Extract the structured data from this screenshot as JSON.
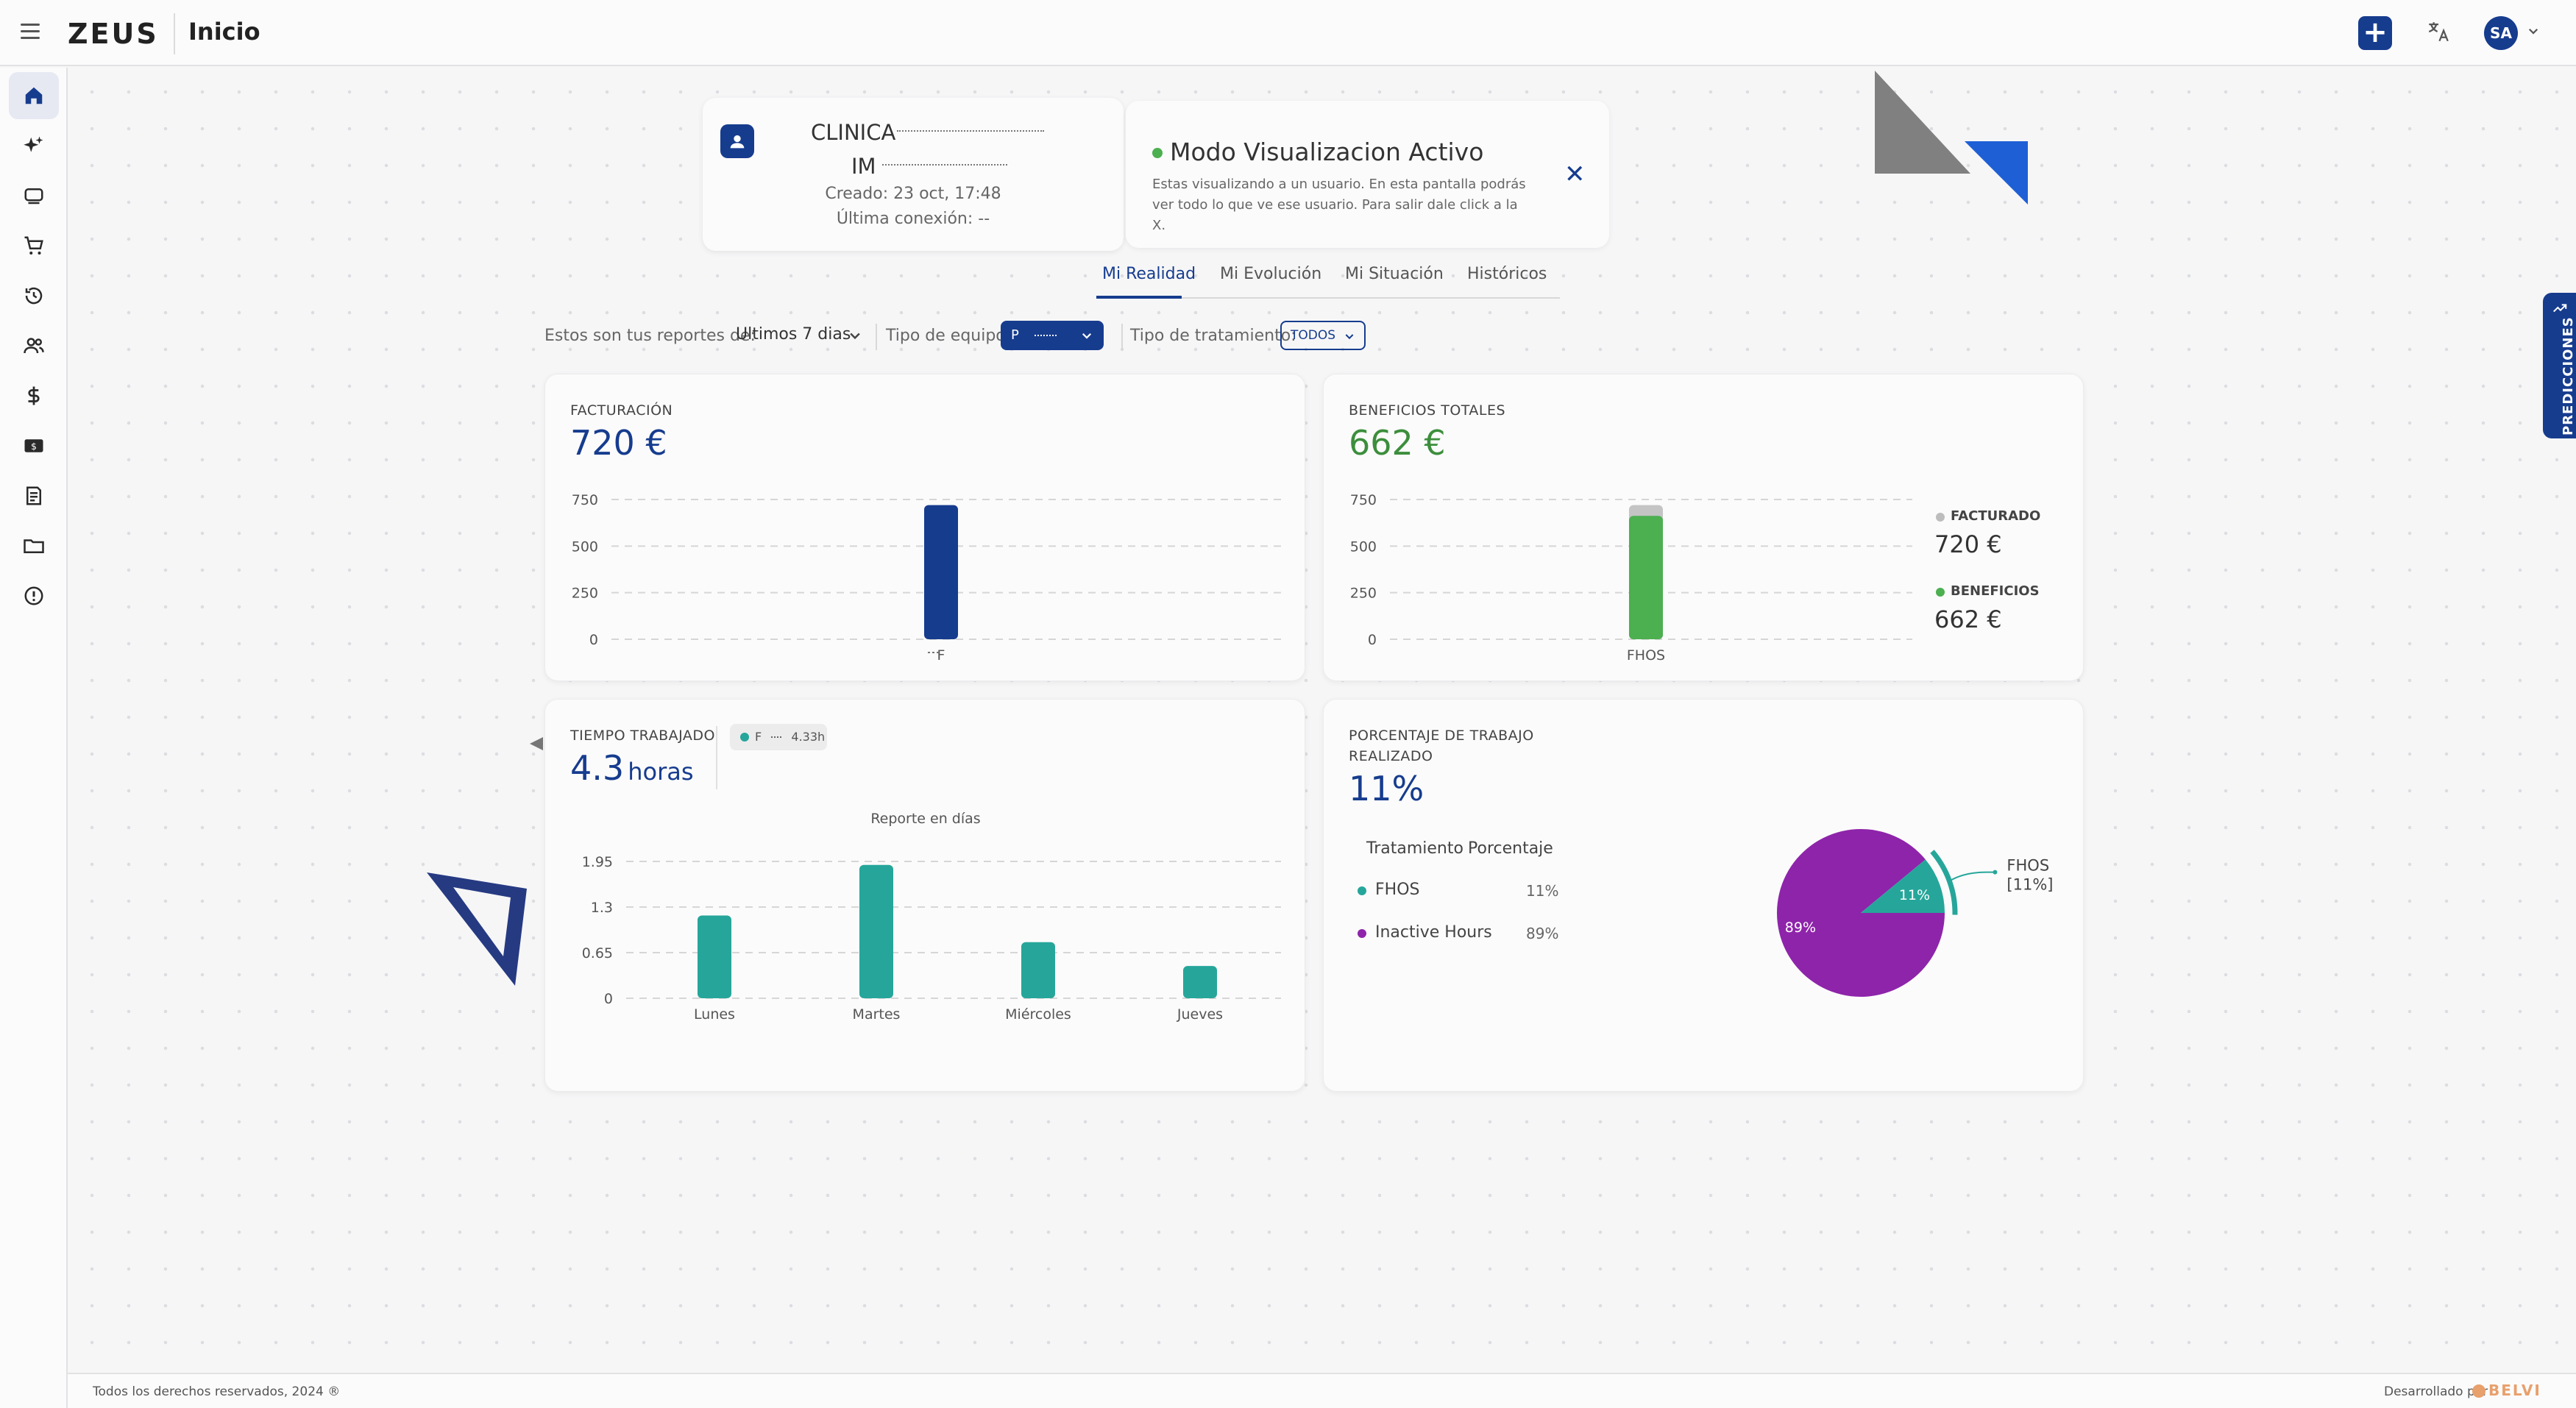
{
  "header": {
    "logo": "ZEUS",
    "title": "Inicio",
    "add_label": "+",
    "avatar_initials": "SA",
    "chevron": "⌄"
  },
  "sidebar": {
    "items": [
      {
        "name": "home-icon",
        "active": true
      },
      {
        "name": "sparkles-icon"
      },
      {
        "name": "device-icon"
      },
      {
        "name": "cart-icon"
      },
      {
        "name": "history-icon"
      },
      {
        "name": "users-icon"
      },
      {
        "name": "dollar-icon"
      },
      {
        "name": "cash-icon"
      },
      {
        "name": "report-icon"
      },
      {
        "name": "folder-icon"
      },
      {
        "name": "alert-icon"
      }
    ]
  },
  "user_card": {
    "name_line1": "CLINICA",
    "name_line2": "IM",
    "created": "Creado: 23 oct, 17:48",
    "last_connection": "Última conexión: --"
  },
  "mode_card": {
    "title": "Modo Visualizacion Activo",
    "description": "Estas visualizando a un usuario. En esta pantalla podrás ver todo lo que ve ese usuario. Para salir dale click a la X.",
    "close": "✕"
  },
  "tabs": [
    {
      "label": "Mi Realidad",
      "active": true
    },
    {
      "label": "Mi Evolución"
    },
    {
      "label": "Mi Situación"
    },
    {
      "label": "Históricos"
    }
  ],
  "filters": {
    "reports_label": "Estos son tus reportes de:",
    "reports_value": "Ultimos 7 dias",
    "equipment_label": "Tipo de equipo:",
    "equipment_value": "P",
    "treatment_label": "Tipo de tratamiento:",
    "treatment_value": "TODOS"
  },
  "facturacion": {
    "label": "FACTURACIÓN",
    "value": "720 €"
  },
  "beneficios": {
    "label": "BENEFICIOS TOTALES",
    "value": "662 €",
    "legend": [
      {
        "label": "FACTURADO",
        "value": "720 €",
        "color": "#bdbdbd"
      },
      {
        "label": "BENEFICIOS",
        "value": "662 €",
        "color": "#4caf50"
      }
    ]
  },
  "tiempo": {
    "label": "TIEMPO TRABAJADO",
    "value_num": "4.3",
    "value_unit": "horas",
    "chip_label": "F",
    "chip_value": "4.33h"
  },
  "porcentaje": {
    "label_line1": "PORCENTAJE DE TRABAJO",
    "label_line2": "REALIZADO",
    "value": "11%",
    "table_headers": [
      "Tratamiento",
      "Porcentaje"
    ],
    "rows": [
      {
        "name": "FHOS",
        "pct": "11%",
        "color": "#26a69a"
      },
      {
        "name": "Inactive Hours",
        "pct": "89%",
        "color": "#8e24aa"
      }
    ]
  },
  "predicciones": {
    "label": "PREDICCIONES"
  },
  "footer": {
    "left": "Todos los derechos reservados, 2024 ®",
    "right": "Desarrollado por",
    "brand": "BELVI"
  },
  "chart_data": [
    {
      "type": "bar",
      "categories": [
        "F"
      ],
      "values": [
        720
      ],
      "yticks": [
        0,
        250,
        500,
        750
      ],
      "ylim": [
        0,
        750
      ],
      "color": "#163c8e"
    },
    {
      "type": "bar",
      "categories": [
        "FHOS"
      ],
      "series": [
        {
          "name": "BENEFICIOS",
          "values": [
            662
          ],
          "color": "#4caf50"
        },
        {
          "name": "FACTURADO",
          "values": [
            720
          ],
          "color": "#c4c4c4"
        }
      ],
      "yticks": [
        0,
        250,
        500,
        750
      ],
      "ylim": [
        0,
        750
      ]
    },
    {
      "type": "bar",
      "title": "Reporte en días",
      "categories": [
        "Lunes",
        "Martes",
        "Miércoles",
        "Jueves"
      ],
      "values": [
        1.18,
        1.9,
        0.8,
        0.46
      ],
      "yticks": [
        0,
        0.65,
        1.3,
        1.95
      ],
      "ylim": [
        0,
        1.95
      ],
      "color": "#26a69a"
    },
    {
      "type": "pie",
      "labels": [
        "FHOS",
        "Inactive Hours"
      ],
      "values": [
        11,
        89
      ],
      "slice_labels": [
        "11%",
        "89%"
      ],
      "callout": [
        "FHOS",
        "[11%]"
      ],
      "colors": [
        "#26a69a",
        "#8e24aa"
      ]
    }
  ]
}
